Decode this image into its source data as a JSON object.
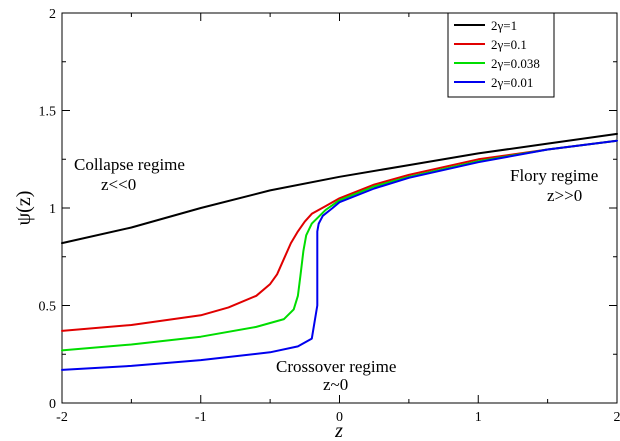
{
  "chart_data": {
    "type": "line",
    "title": "",
    "xlabel": "z",
    "ylabel": "ψ(z)",
    "xlim": [
      -2,
      2
    ],
    "ylim": [
      0,
      2
    ],
    "xticks": [
      -2,
      -1,
      0,
      1,
      2
    ],
    "yticks": [
      0,
      0.5,
      1,
      1.5,
      2
    ],
    "xtick_labels": [
      "-2",
      "-1",
      "0",
      "1",
      "2"
    ],
    "ytick_labels": [
      "0",
      "0.5",
      "1",
      "1.5",
      "2"
    ],
    "grid": false,
    "legend_position": "top-right",
    "series": [
      {
        "name": "2γ=1",
        "color": "#000000",
        "x": [
          -2,
          -1.5,
          -1,
          -0.5,
          0,
          0.5,
          1,
          1.5,
          2
        ],
        "y": [
          0.82,
          0.9,
          1.0,
          1.09,
          1.16,
          1.22,
          1.28,
          1.33,
          1.38
        ]
      },
      {
        "name": "2γ=0.1",
        "color": "#e00000",
        "x": [
          -2,
          -1.5,
          -1,
          -0.8,
          -0.6,
          -0.5,
          -0.45,
          -0.4,
          -0.35,
          -0.3,
          -0.25,
          -0.2,
          -0.1,
          0,
          0.25,
          0.5,
          1,
          1.5,
          2
        ],
        "y": [
          0.37,
          0.4,
          0.45,
          0.49,
          0.55,
          0.61,
          0.66,
          0.74,
          0.82,
          0.88,
          0.93,
          0.97,
          1.01,
          1.05,
          1.12,
          1.17,
          1.25,
          1.3,
          1.345
        ]
      },
      {
        "name": "2γ=0.038",
        "color": "#00dd00",
        "x": [
          -2,
          -1.5,
          -1,
          -0.6,
          -0.4,
          -0.33,
          -0.3,
          -0.28,
          -0.26,
          -0.24,
          -0.2,
          -0.1,
          0,
          0.25,
          0.5,
          1,
          1.5,
          2
        ],
        "y": [
          0.27,
          0.3,
          0.34,
          0.39,
          0.43,
          0.48,
          0.55,
          0.66,
          0.78,
          0.86,
          0.92,
          0.99,
          1.04,
          1.11,
          1.16,
          1.24,
          1.3,
          1.345
        ]
      },
      {
        "name": "2γ=0.01",
        "color": "#0000ee",
        "x": [
          -2,
          -1.5,
          -1,
          -0.5,
          -0.3,
          -0.2,
          -0.16,
          -0.16,
          -0.15,
          -0.12,
          -0.05,
          0,
          0.25,
          0.5,
          1,
          1.5,
          2
        ],
        "y": [
          0.17,
          0.19,
          0.22,
          0.26,
          0.29,
          0.33,
          0.5,
          0.88,
          0.92,
          0.96,
          1.0,
          1.03,
          1.1,
          1.155,
          1.235,
          1.3,
          1.345
        ]
      }
    ],
    "annotations": [
      {
        "id": "collapse",
        "lines": [
          "Collapse regime",
          "z<<0"
        ]
      },
      {
        "id": "flory",
        "lines": [
          "Flory regime",
          "z>>0"
        ]
      },
      {
        "id": "crossover",
        "lines": [
          "Crossover regime",
          "z~0"
        ]
      }
    ]
  }
}
